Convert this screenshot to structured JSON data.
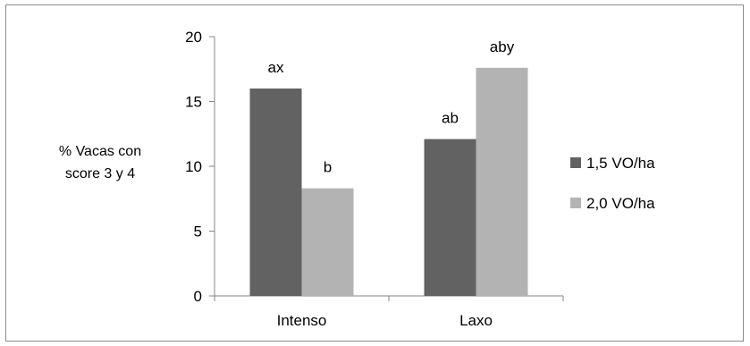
{
  "chart_data": {
    "type": "bar",
    "title": "",
    "xlabel": "",
    "ylabel_lines": [
      "% Vacas con",
      "score 3 y 4"
    ],
    "categories": [
      "Intenso",
      "Laxo"
    ],
    "series": [
      {
        "name": "1,5 VO/ha",
        "color": "#626262",
        "values": [
          16.0,
          12.1
        ],
        "labels": [
          "ax",
          "ab"
        ]
      },
      {
        "name": "2,0 VO/ha",
        "color": "#b3b3b3",
        "values": [
          8.3,
          17.6
        ],
        "labels": [
          "b",
          "aby"
        ]
      }
    ],
    "ylim": [
      0,
      20
    ],
    "yticks": [
      0,
      5,
      10,
      15,
      20
    ],
    "grid": false,
    "legend_position": "right"
  }
}
